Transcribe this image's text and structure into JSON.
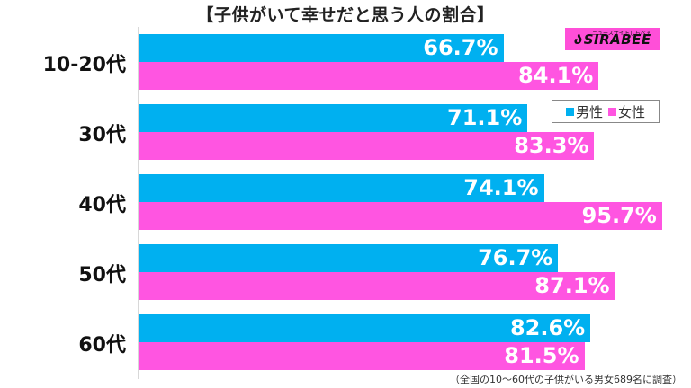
{
  "header": {
    "title": "【子供がいて幸せだと思う人の割合】"
  },
  "logo": {
    "mark": "ა",
    "word": "SIRABEE",
    "tagline": "ニュースサイトしらべぇ"
  },
  "legend": {
    "items": [
      {
        "label": "男性",
        "color": "#00b0f0"
      },
      {
        "label": "女性",
        "color": "#ff55e1"
      }
    ]
  },
  "footnote": "（全国の10～60代の子供がいる男女689名に調査）",
  "groups": [
    {
      "label": "10-20代",
      "male": "66.7%",
      "female": "84.1%"
    },
    {
      "label": "30代",
      "male": "71.1%",
      "female": "83.3%"
    },
    {
      "label": "40代",
      "male": "74.1%",
      "female": "95.7%"
    },
    {
      "label": "50代",
      "male": "76.7%",
      "female": "87.1%"
    },
    {
      "label": "60代",
      "male": "82.6%",
      "female": "81.5%"
    }
  ],
  "chart_data": {
    "type": "bar",
    "orientation": "horizontal",
    "title": "【子供がいて幸せだと思う人の割合】",
    "categories": [
      "10-20代",
      "30代",
      "40代",
      "50代",
      "60代"
    ],
    "series": [
      {
        "name": "男性",
        "color": "#00b0f0",
        "values": [
          66.7,
          71.1,
          74.1,
          76.7,
          82.6
        ]
      },
      {
        "name": "女性",
        "color": "#ff55e1",
        "values": [
          84.1,
          83.3,
          95.7,
          87.1,
          81.5
        ]
      }
    ],
    "xlabel": "",
    "ylabel": "",
    "unit": "%",
    "xlim": [
      0,
      100
    ],
    "grid": false,
    "legend_position": "upper right",
    "annotation": "（全国の10～60代の子供がいる男女689名に調査）"
  }
}
